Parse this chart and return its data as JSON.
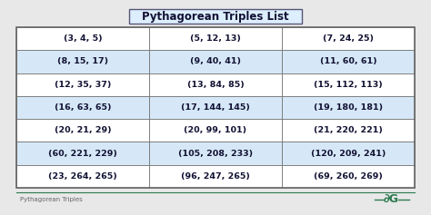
{
  "title": "Pythagorean Triples List",
  "footer_text": "Pythagorean Triples",
  "table_data": [
    [
      "(3, 4, 5)",
      "(5, 12, 13)",
      "(7, 24, 25)"
    ],
    [
      "(8, 15, 17)",
      "(9, 40, 41)",
      "(11, 60, 61)"
    ],
    [
      "(12, 35, 37)",
      "(13, 84, 85)",
      "(15, 112, 113)"
    ],
    [
      "(16, 63, 65)",
      "(17, 144, 145)",
      "(19, 180, 181)"
    ],
    [
      "(20, 21, 29)",
      "(20, 99, 101)",
      "(21, 220, 221)"
    ],
    [
      "(60, 221, 229)",
      "(105, 208, 233)",
      "(120, 209, 241)"
    ],
    [
      "(23, 264, 265)",
      "(96, 247, 265)",
      "(69, 260, 269)"
    ]
  ],
  "shaded_rows": [
    1,
    3,
    5
  ],
  "row_color_shaded": "#d6e8f7",
  "row_color_plain": "#ffffff",
  "title_box_facecolor": "#ddeeff",
  "title_border_color": "#555577",
  "table_border_color": "#666666",
  "text_color": "#111133",
  "footer_color": "#666666",
  "bg_color": "#e8e8e8",
  "geeks_color": "#2d7a4f",
  "title_fontsize": 8.5,
  "cell_fontsize": 6.8,
  "footer_fontsize": 5.0
}
